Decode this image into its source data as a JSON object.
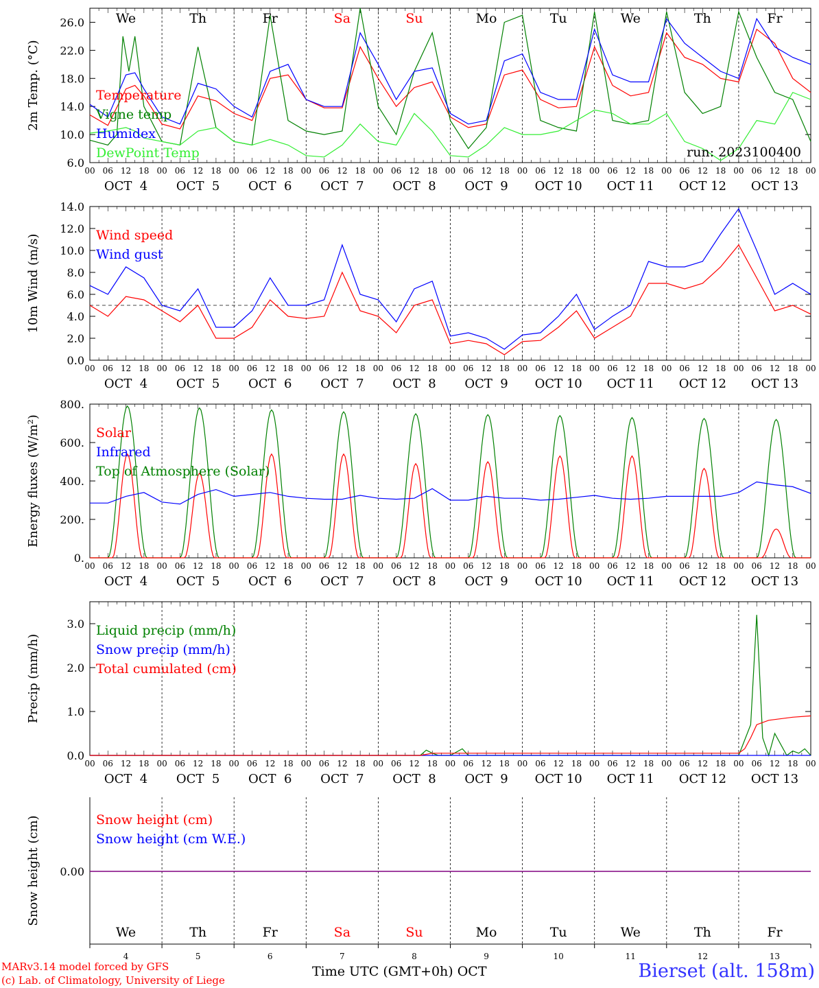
{
  "run_label": "run: 2023100400",
  "day_names": [
    "We",
    "Th",
    "Fr",
    "Sa",
    "Su",
    "Mo",
    "Tu",
    "We",
    "Th",
    "Fr"
  ],
  "weekend_color": "#ff0000",
  "weekend_days": [
    3,
    4
  ],
  "date_labels": [
    "OCT  4",
    "OCT  5",
    "OCT  6",
    "OCT  7",
    "OCT  8",
    "OCT  9",
    "OCT 10",
    "OCT 11",
    "OCT 12",
    "OCT 13"
  ],
  "hour_labels": [
    "00",
    "06",
    "12",
    "18"
  ],
  "final_hour_label": "00",
  "bottom_day_numbers": [
    "4",
    "5",
    "6",
    "7",
    "8",
    "9",
    "10",
    "11",
    "12",
    "13"
  ],
  "footer": {
    "model": "MARv3.14 model forced by GFS",
    "copyright": "(c) Lab. of Climatology, University of Liege",
    "time_axis": "Time UTC (GMT+0h) OCT",
    "station": "Bierset (alt. 158m)"
  },
  "colors": {
    "red": "#ff0000",
    "blue": "#0000ff",
    "darkgreen": "#008000",
    "lightgreen": "#33ee33",
    "purple": "#800080"
  },
  "chart_data": [
    {
      "type": "line",
      "ylabel": "2m Temp. (°C)",
      "ylim": [
        6,
        28
      ],
      "yticks": [
        "6.0",
        "10.0",
        "14.0",
        "18.0",
        "22.0",
        "26.0"
      ],
      "x_unit": "hours since 2023-10-04 00 UTC",
      "series": [
        {
          "name": "Temperature",
          "color": "#ff0000",
          "x": [
            0,
            6,
            12,
            15,
            18,
            24,
            30,
            36,
            42,
            48,
            54,
            60,
            66,
            72,
            78,
            84,
            90,
            96,
            102,
            108,
            114,
            120,
            126,
            132,
            138,
            144,
            150,
            156,
            162,
            168,
            174,
            180,
            186,
            192,
            198,
            204,
            210,
            216,
            222,
            228,
            234,
            240
          ],
          "y": [
            12.8,
            11.3,
            16.5,
            17,
            15.5,
            11.5,
            10.8,
            15.5,
            14.8,
            13,
            12,
            18,
            18.5,
            15,
            13.8,
            13.8,
            22.5,
            18,
            14,
            16.7,
            17.5,
            12.5,
            11,
            11.5,
            18.5,
            19.2,
            15,
            13.8,
            14,
            22.5,
            17,
            15.5,
            16,
            24.5,
            21,
            20,
            18,
            17.5,
            25,
            23,
            18,
            16
          ]
        },
        {
          "name": "Vigne temp",
          "color": "#008000",
          "x": [
            0,
            6,
            9,
            11,
            13,
            15,
            18,
            24,
            30,
            36,
            42,
            48,
            54,
            60,
            66,
            72,
            78,
            84,
            90,
            96,
            102,
            108,
            114,
            120,
            126,
            132,
            138,
            144,
            150,
            156,
            162,
            168,
            174,
            180,
            186,
            192,
            198,
            204,
            210,
            216,
            222,
            228,
            234,
            240
          ],
          "y": [
            9.2,
            8.5,
            10,
            24,
            19,
            24,
            14,
            9,
            8.5,
            22.5,
            11,
            9,
            8.5,
            27,
            12,
            10.5,
            10,
            10.5,
            28,
            14,
            10,
            19,
            24.5,
            12,
            8,
            11,
            26,
            27,
            12,
            11,
            10.5,
            27.5,
            12,
            11.5,
            12,
            27.5,
            16,
            13,
            14,
            27.5,
            21,
            16,
            15,
            9
          ]
        },
        {
          "name": "Humidex",
          "color": "#0000ff",
          "x": [
            0,
            6,
            12,
            15,
            18,
            24,
            30,
            36,
            42,
            48,
            54,
            60,
            66,
            72,
            78,
            84,
            90,
            96,
            102,
            108,
            114,
            120,
            126,
            132,
            138,
            144,
            150,
            156,
            162,
            168,
            174,
            180,
            186,
            192,
            198,
            204,
            210,
            216,
            222,
            228,
            234,
            240
          ],
          "y": [
            14.3,
            12.5,
            18.5,
            18.8,
            16.5,
            12.5,
            11.5,
            17.3,
            16.5,
            14,
            12.5,
            19,
            20,
            15,
            14,
            14,
            24.5,
            20,
            15,
            19,
            19.5,
            13,
            11.5,
            12,
            20.5,
            21.5,
            16,
            15,
            15,
            25,
            18.5,
            17.5,
            17.5,
            26.5,
            23,
            21,
            19,
            18,
            26.5,
            22.5,
            21,
            20
          ]
        },
        {
          "name": "DewPoint Temp",
          "color": "#33ee33",
          "x": [
            0,
            6,
            12,
            15,
            18,
            24,
            30,
            36,
            42,
            48,
            54,
            60,
            66,
            72,
            78,
            84,
            90,
            96,
            102,
            108,
            114,
            120,
            126,
            132,
            138,
            144,
            150,
            156,
            162,
            168,
            174,
            180,
            186,
            192,
            198,
            204,
            210,
            216,
            222,
            228,
            234,
            240
          ],
          "y": [
            10.2,
            10.5,
            11,
            10.5,
            9.5,
            9,
            8.5,
            10.5,
            11,
            9,
            8.5,
            9.3,
            8.5,
            7,
            6.8,
            8.5,
            11.5,
            9,
            8.5,
            13,
            10.5,
            7,
            6.8,
            8.5,
            11,
            10,
            10,
            10.5,
            12,
            13.5,
            13,
            11.5,
            11.5,
            13,
            9,
            8,
            6.3,
            8,
            12,
            11.5,
            16,
            15
          ]
        }
      ]
    },
    {
      "type": "line",
      "ylabel": "10m Wind (m/s)",
      "ylim": [
        0,
        14
      ],
      "yticks": [
        "0.0",
        "2.0",
        "4.0",
        "6.0",
        "8.0",
        "10.0",
        "12.0",
        "14.0"
      ],
      "reference_line": 5,
      "series": [
        {
          "name": "Wind speed",
          "color": "#ff0000",
          "x": [
            0,
            6,
            12,
            18,
            24,
            30,
            36,
            42,
            48,
            54,
            60,
            66,
            72,
            78,
            84,
            90,
            96,
            102,
            108,
            114,
            120,
            126,
            132,
            138,
            144,
            150,
            156,
            162,
            168,
            174,
            180,
            186,
            192,
            198,
            204,
            210,
            216,
            222,
            228,
            234,
            240
          ],
          "y": [
            5,
            4,
            5.8,
            5.5,
            4.5,
            3.5,
            5,
            2,
            2,
            3,
            5.5,
            4,
            3.8,
            4,
            8,
            4.5,
            4,
            2.5,
            5,
            5.5,
            1.5,
            1.8,
            1.5,
            0.5,
            1.7,
            1.8,
            3,
            4.5,
            2,
            3,
            4,
            7,
            7,
            6.5,
            7,
            8.5,
            10.5,
            7.5,
            4.5,
            5,
            4.2
          ]
        },
        {
          "name": "Wind gust",
          "color": "#0000ff",
          "x": [
            0,
            6,
            12,
            18,
            24,
            30,
            36,
            42,
            48,
            54,
            60,
            66,
            72,
            78,
            84,
            90,
            96,
            102,
            108,
            114,
            120,
            126,
            132,
            138,
            144,
            150,
            156,
            162,
            168,
            174,
            180,
            186,
            192,
            198,
            204,
            210,
            216,
            222,
            228,
            234,
            240
          ],
          "y": [
            6.8,
            6,
            8.5,
            7.5,
            5,
            4.5,
            6.5,
            3,
            3,
            4.5,
            7.5,
            5,
            5,
            5.5,
            10.5,
            6,
            5.5,
            3.5,
            6.5,
            7.2,
            2.2,
            2.5,
            2,
            1,
            2.3,
            2.5,
            4,
            6,
            2.8,
            4,
            5,
            9,
            8.5,
            8.5,
            9,
            11.5,
            13.8,
            10,
            6,
            7,
            6
          ]
        }
      ]
    },
    {
      "type": "line",
      "ylabel": "Energy fluxes (W/m²)",
      "ylim": [
        0,
        800
      ],
      "yticks": [
        "0.",
        "200.",
        "400.",
        "600.",
        "800."
      ],
      "series": [
        {
          "name": "Solar",
          "color": "#ff0000",
          "peaks": [
            540,
            440,
            540,
            540,
            490,
            500,
            530,
            530,
            465,
            150
          ]
        },
        {
          "name": "Infrared",
          "color": "#0000ff",
          "x": [
            0,
            6,
            12,
            18,
            24,
            30,
            36,
            42,
            48,
            54,
            60,
            66,
            72,
            78,
            84,
            90,
            96,
            102,
            108,
            114,
            120,
            126,
            132,
            138,
            144,
            150,
            156,
            162,
            168,
            174,
            180,
            186,
            192,
            198,
            204,
            210,
            216,
            222,
            228,
            234,
            240
          ],
          "y": [
            285,
            285,
            320,
            340,
            290,
            280,
            330,
            355,
            320,
            330,
            340,
            320,
            310,
            305,
            305,
            325,
            310,
            305,
            310,
            360,
            300,
            300,
            320,
            310,
            310,
            300,
            305,
            315,
            325,
            310,
            305,
            310,
            320,
            320,
            320,
            320,
            340,
            395,
            380,
            370,
            335
          ]
        },
        {
          "name": "Top of Atmosphere (Solar)",
          "color": "#008000",
          "peaks": [
            790,
            780,
            770,
            760,
            750,
            745,
            740,
            730,
            725,
            720
          ]
        }
      ]
    },
    {
      "type": "line",
      "ylabel": "Precip (mm/h)",
      "ylim": [
        0,
        3.5
      ],
      "yticks": [
        "0.0",
        "1.0",
        "2.0",
        "3.0"
      ],
      "series": [
        {
          "name": "Liquid precip (mm/h)",
          "color": "#008000",
          "x": [
            0,
            110,
            112,
            114,
            116,
            120,
            124,
            126,
            128,
            216,
            220,
            222,
            224,
            226,
            228,
            232,
            234,
            236,
            238,
            240
          ],
          "y": [
            0,
            0,
            0.12,
            0.05,
            0,
            0,
            0.15,
            0,
            0,
            0,
            0.7,
            3.2,
            0.4,
            0,
            0.5,
            0,
            0.1,
            0.05,
            0.15,
            0
          ]
        },
        {
          "name": "Snow precip (mm/h)",
          "color": "#0000ff",
          "x": [
            0,
            240
          ],
          "y": [
            0,
            0
          ]
        },
        {
          "name": "Total cumulated (cm)",
          "color": "#ff0000",
          "x": [
            0,
            110,
            114,
            216,
            218,
            220,
            222,
            226,
            234,
            240
          ],
          "y": [
            0,
            0,
            0.05,
            0.05,
            0.15,
            0.4,
            0.7,
            0.8,
            0.87,
            0.9
          ]
        }
      ]
    },
    {
      "type": "line",
      "ylabel": "Snow height (cm)",
      "ytick": "0.00",
      "series": [
        {
          "name": "Snow height (cm)",
          "color": "#ff0000",
          "x": [
            0,
            240
          ],
          "y": [
            0,
            0
          ]
        },
        {
          "name": "Snow height (cm W.E.)",
          "color": "#0000ff",
          "x": [
            0,
            240
          ],
          "y": [
            0,
            0
          ]
        }
      ]
    }
  ]
}
